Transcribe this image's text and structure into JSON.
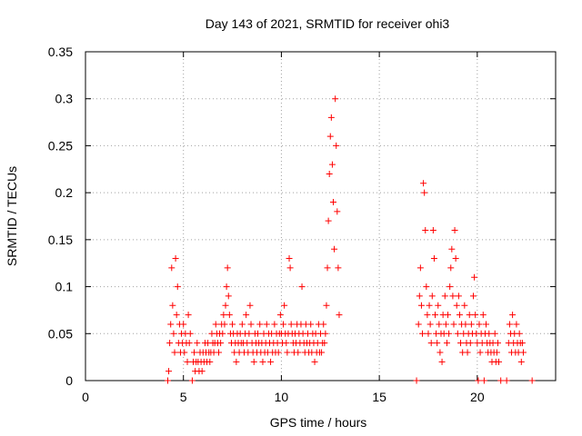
{
  "chart_data": {
    "type": "scatter",
    "title": "Day 143 of 2021, SRMTID for receiver ohi3",
    "xlabel": "GPS time / hours",
    "ylabel": "SRMTID / TECUs",
    "xlim": [
      0,
      24
    ],
    "ylim": [
      0,
      0.35
    ],
    "x_ticks": [
      0,
      5,
      10,
      15,
      20
    ],
    "y_ticks": [
      0,
      0.05,
      0.1,
      0.15,
      0.2,
      0.25,
      0.3,
      0.35
    ],
    "grid": true,
    "marker": "plus",
    "color": "#ff0000",
    "series": [
      {
        "name": "ohi3",
        "points": [
          [
            4.2,
            0.0
          ],
          [
            4.25,
            0.01
          ],
          [
            4.3,
            0.04
          ],
          [
            4.35,
            0.06
          ],
          [
            4.4,
            0.12
          ],
          [
            4.45,
            0.08
          ],
          [
            4.5,
            0.05
          ],
          [
            4.55,
            0.03
          ],
          [
            4.6,
            0.13
          ],
          [
            4.65,
            0.07
          ],
          [
            4.7,
            0.1
          ],
          [
            4.75,
            0.04
          ],
          [
            4.8,
            0.06
          ],
          [
            4.85,
            0.03
          ],
          [
            4.9,
            0.05
          ],
          [
            4.95,
            0.04
          ],
          [
            5.0,
            0.06
          ],
          [
            5.05,
            0.03
          ],
          [
            5.1,
            0.05
          ],
          [
            5.15,
            0.04
          ],
          [
            5.2,
            0.02
          ],
          [
            5.25,
            0.07
          ],
          [
            5.3,
            0.04
          ],
          [
            5.35,
            0.05
          ],
          [
            5.45,
            0.0
          ],
          [
            5.5,
            0.02
          ],
          [
            5.55,
            0.03
          ],
          [
            5.6,
            0.01
          ],
          [
            5.65,
            0.02
          ],
          [
            5.7,
            0.04
          ],
          [
            5.75,
            0.02
          ],
          [
            5.8,
            0.01
          ],
          [
            5.85,
            0.03
          ],
          [
            5.9,
            0.02
          ],
          [
            5.95,
            0.01
          ],
          [
            6.0,
            0.03
          ],
          [
            6.05,
            0.02
          ],
          [
            6.1,
            0.04
          ],
          [
            6.15,
            0.03
          ],
          [
            6.2,
            0.02
          ],
          [
            6.25,
            0.04
          ],
          [
            6.3,
            0.03
          ],
          [
            6.35,
            0.02
          ],
          [
            6.4,
            0.03
          ],
          [
            6.45,
            0.05
          ],
          [
            6.5,
            0.04
          ],
          [
            6.55,
            0.03
          ],
          [
            6.6,
            0.04
          ],
          [
            6.65,
            0.06
          ],
          [
            6.7,
            0.05
          ],
          [
            6.75,
            0.04
          ],
          [
            6.8,
            0.03
          ],
          [
            6.85,
            0.05
          ],
          [
            6.9,
            0.04
          ],
          [
            6.95,
            0.06
          ],
          [
            7.0,
            0.05
          ],
          [
            7.05,
            0.07
          ],
          [
            7.1,
            0.06
          ],
          [
            7.15,
            0.08
          ],
          [
            7.2,
            0.1
          ],
          [
            7.25,
            0.12
          ],
          [
            7.3,
            0.09
          ],
          [
            7.35,
            0.07
          ],
          [
            7.4,
            0.05
          ],
          [
            7.45,
            0.04
          ],
          [
            7.5,
            0.06
          ],
          [
            7.55,
            0.05
          ],
          [
            7.6,
            0.03
          ],
          [
            7.65,
            0.04
          ],
          [
            7.7,
            0.02
          ],
          [
            7.75,
            0.05
          ],
          [
            7.8,
            0.04
          ],
          [
            7.85,
            0.03
          ],
          [
            7.9,
            0.05
          ],
          [
            7.95,
            0.04
          ],
          [
            8.0,
            0.06
          ],
          [
            8.05,
            0.04
          ],
          [
            8.1,
            0.03
          ],
          [
            8.15,
            0.05
          ],
          [
            8.2,
            0.07
          ],
          [
            8.25,
            0.04
          ],
          [
            8.3,
            0.03
          ],
          [
            8.35,
            0.05
          ],
          [
            8.4,
            0.08
          ],
          [
            8.45,
            0.06
          ],
          [
            8.5,
            0.04
          ],
          [
            8.55,
            0.03
          ],
          [
            8.6,
            0.02
          ],
          [
            8.65,
            0.05
          ],
          [
            8.7,
            0.04
          ],
          [
            8.75,
            0.03
          ],
          [
            8.8,
            0.05
          ],
          [
            8.85,
            0.04
          ],
          [
            8.9,
            0.06
          ],
          [
            8.95,
            0.03
          ],
          [
            9.0,
            0.04
          ],
          [
            9.05,
            0.02
          ],
          [
            9.1,
            0.05
          ],
          [
            9.15,
            0.03
          ],
          [
            9.2,
            0.04
          ],
          [
            9.25,
            0.06
          ],
          [
            9.3,
            0.03
          ],
          [
            9.35,
            0.05
          ],
          [
            9.4,
            0.04
          ],
          [
            9.45,
            0.02
          ],
          [
            9.5,
            0.05
          ],
          [
            9.55,
            0.03
          ],
          [
            9.6,
            0.04
          ],
          [
            9.65,
            0.06
          ],
          [
            9.7,
            0.03
          ],
          [
            9.75,
            0.05
          ],
          [
            9.8,
            0.04
          ],
          [
            9.85,
            0.03
          ],
          [
            9.9,
            0.05
          ],
          [
            9.95,
            0.07
          ],
          [
            10.0,
            0.05
          ],
          [
            10.05,
            0.04
          ],
          [
            10.1,
            0.06
          ],
          [
            10.15,
            0.08
          ],
          [
            10.2,
            0.05
          ],
          [
            10.25,
            0.04
          ],
          [
            10.3,
            0.03
          ],
          [
            10.35,
            0.05
          ],
          [
            10.4,
            0.13
          ],
          [
            10.45,
            0.12
          ],
          [
            10.5,
            0.06
          ],
          [
            10.55,
            0.05
          ],
          [
            10.6,
            0.04
          ],
          [
            10.65,
            0.03
          ],
          [
            10.7,
            0.05
          ],
          [
            10.75,
            0.04
          ],
          [
            10.8,
            0.06
          ],
          [
            10.85,
            0.03
          ],
          [
            10.9,
            0.05
          ],
          [
            10.95,
            0.04
          ],
          [
            11.0,
            0.06
          ],
          [
            11.05,
            0.1
          ],
          [
            11.1,
            0.05
          ],
          [
            11.15,
            0.04
          ],
          [
            11.2,
            0.03
          ],
          [
            11.25,
            0.06
          ],
          [
            11.3,
            0.04
          ],
          [
            11.35,
            0.05
          ],
          [
            11.4,
            0.03
          ],
          [
            11.45,
            0.04
          ],
          [
            11.5,
            0.06
          ],
          [
            11.55,
            0.03
          ],
          [
            11.6,
            0.05
          ],
          [
            11.65,
            0.04
          ],
          [
            11.7,
            0.02
          ],
          [
            11.75,
            0.05
          ],
          [
            11.8,
            0.03
          ],
          [
            11.85,
            0.04
          ],
          [
            11.9,
            0.06
          ],
          [
            11.95,
            0.03
          ],
          [
            12.0,
            0.05
          ],
          [
            12.05,
            0.03
          ],
          [
            12.1,
            0.04
          ],
          [
            12.15,
            0.06
          ],
          [
            12.2,
            0.04
          ],
          [
            12.25,
            0.05
          ],
          [
            12.3,
            0.08
          ],
          [
            12.35,
            0.12
          ],
          [
            12.4,
            0.17
          ],
          [
            12.45,
            0.22
          ],
          [
            12.5,
            0.26
          ],
          [
            12.55,
            0.28
          ],
          [
            12.6,
            0.23
          ],
          [
            12.65,
            0.19
          ],
          [
            12.7,
            0.14
          ],
          [
            12.75,
            0.3
          ],
          [
            12.8,
            0.25
          ],
          [
            12.85,
            0.18
          ],
          [
            12.9,
            0.12
          ],
          [
            12.95,
            0.07
          ],
          [
            16.9,
            0.0
          ],
          [
            17.0,
            0.06
          ],
          [
            17.05,
            0.09
          ],
          [
            17.1,
            0.12
          ],
          [
            17.15,
            0.08
          ],
          [
            17.2,
            0.05
          ],
          [
            17.25,
            0.21
          ],
          [
            17.3,
            0.2
          ],
          [
            17.35,
            0.16
          ],
          [
            17.4,
            0.1
          ],
          [
            17.45,
            0.07
          ],
          [
            17.5,
            0.05
          ],
          [
            17.55,
            0.08
          ],
          [
            17.6,
            0.06
          ],
          [
            17.65,
            0.04
          ],
          [
            17.7,
            0.09
          ],
          [
            17.75,
            0.16
          ],
          [
            17.8,
            0.13
          ],
          [
            17.85,
            0.07
          ],
          [
            17.9,
            0.05
          ],
          [
            17.95,
            0.04
          ],
          [
            18.0,
            0.08
          ],
          [
            18.05,
            0.06
          ],
          [
            18.1,
            0.03
          ],
          [
            18.15,
            0.05
          ],
          [
            18.2,
            0.02
          ],
          [
            18.25,
            0.07
          ],
          [
            18.3,
            0.05
          ],
          [
            18.35,
            0.09
          ],
          [
            18.4,
            0.06
          ],
          [
            18.45,
            0.04
          ],
          [
            18.5,
            0.07
          ],
          [
            18.55,
            0.05
          ],
          [
            18.6,
            0.1
          ],
          [
            18.65,
            0.12
          ],
          [
            18.7,
            0.14
          ],
          [
            18.75,
            0.09
          ],
          [
            18.8,
            0.06
          ],
          [
            18.85,
            0.16
          ],
          [
            18.9,
            0.13
          ],
          [
            18.95,
            0.08
          ],
          [
            19.0,
            0.05
          ],
          [
            19.05,
            0.09
          ],
          [
            19.1,
            0.07
          ],
          [
            19.15,
            0.04
          ],
          [
            19.2,
            0.06
          ],
          [
            19.25,
            0.03
          ],
          [
            19.3,
            0.05
          ],
          [
            19.35,
            0.08
          ],
          [
            19.4,
            0.06
          ],
          [
            19.45,
            0.04
          ],
          [
            19.5,
            0.03
          ],
          [
            19.55,
            0.05
          ],
          [
            19.6,
            0.07
          ],
          [
            19.65,
            0.04
          ],
          [
            19.7,
            0.06
          ],
          [
            19.75,
            0.05
          ],
          [
            19.8,
            0.09
          ],
          [
            19.85,
            0.11
          ],
          [
            19.9,
            0.07
          ],
          [
            19.95,
            0.05
          ],
          [
            20.0,
            0.04
          ],
          [
            20.05,
            0.0
          ],
          [
            20.1,
            0.06
          ],
          [
            20.15,
            0.03
          ],
          [
            20.2,
            0.05
          ],
          [
            20.25,
            0.04
          ],
          [
            20.3,
            0.07
          ],
          [
            20.35,
            0.0
          ],
          [
            20.4,
            0.05
          ],
          [
            20.45,
            0.06
          ],
          [
            20.5,
            0.04
          ],
          [
            20.55,
            0.03
          ],
          [
            20.6,
            0.05
          ],
          [
            20.65,
            0.04
          ],
          [
            20.7,
            0.03
          ],
          [
            20.75,
            0.02
          ],
          [
            20.8,
            0.04
          ],
          [
            20.85,
            0.03
          ],
          [
            20.9,
            0.05
          ],
          [
            20.95,
            0.02
          ],
          [
            21.0,
            0.03
          ],
          [
            21.05,
            0.04
          ],
          [
            21.1,
            0.02
          ],
          [
            21.2,
            0.0
          ],
          [
            21.5,
            0.0
          ],
          [
            21.6,
            0.04
          ],
          [
            21.65,
            0.06
          ],
          [
            21.7,
            0.05
          ],
          [
            21.75,
            0.03
          ],
          [
            21.8,
            0.07
          ],
          [
            21.85,
            0.04
          ],
          [
            21.9,
            0.05
          ],
          [
            21.95,
            0.03
          ],
          [
            22.0,
            0.06
          ],
          [
            22.05,
            0.04
          ],
          [
            22.1,
            0.03
          ],
          [
            22.15,
            0.05
          ],
          [
            22.2,
            0.04
          ],
          [
            22.25,
            0.02
          ],
          [
            22.3,
            0.04
          ],
          [
            22.35,
            0.03
          ],
          [
            22.8,
            0.0
          ]
        ]
      }
    ]
  }
}
